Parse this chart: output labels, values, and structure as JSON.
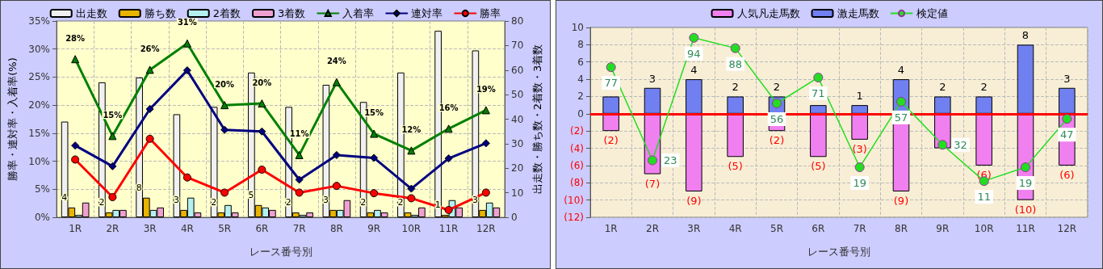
{
  "chart_data": [
    {
      "type": "bar",
      "xlabel": "レース番号別",
      "ylabel": "勝率・連対率・入着率(%)",
      "y2label": "出走数・勝ち数・2着数・3着数",
      "categories": [
        "1R",
        "2R",
        "3R",
        "4R",
        "5R",
        "6R",
        "7R",
        "8R",
        "9R",
        "10R",
        "11R",
        "12R"
      ],
      "series": [
        {
          "name": "出走数",
          "color": "#f0f0f0",
          "axis": "y2",
          "values": [
            39,
            55,
            57,
            42,
            45,
            59,
            45,
            54,
            47,
            59,
            76,
            68
          ]
        },
        {
          "name": "勝ち数",
          "color": "#e8b400",
          "axis": "y2",
          "values": [
            4,
            2,
            8,
            3,
            2,
            5,
            2,
            3,
            2,
            2,
            1,
            3
          ],
          "value_labels": [
            "4",
            "2",
            "8",
            "3",
            "2",
            "5",
            "2",
            "3",
            "2",
            "2",
            "1",
            "3"
          ]
        },
        {
          "name": "2着数",
          "color": "#b4f0f0",
          "axis": "y2",
          "values": [
            1,
            3,
            3,
            8,
            5,
            4,
            1,
            3,
            3,
            1,
            7,
            6
          ]
        },
        {
          "name": "3着数",
          "color": "#f0a0d0",
          "axis": "y2",
          "values": [
            6,
            3,
            4,
            2,
            2,
            3,
            2,
            7,
            2,
            4,
            4,
            4
          ]
        },
        {
          "name": "入着率",
          "type": "line",
          "color": "#008000",
          "marker": "triangle",
          "values": [
            28.2,
            14.5,
            26.3,
            31.0,
            20.0,
            20.3,
            11.1,
            24.1,
            14.9,
            11.9,
            15.8,
            19.1
          ],
          "value_labels": [
            "28%",
            "15%",
            "26%",
            "31%",
            "20%",
            "20%",
            "11%",
            "24%",
            "15%",
            "12%",
            "16%",
            "19%"
          ]
        },
        {
          "name": "連対率",
          "type": "line",
          "color": "#000080",
          "marker": "diamond",
          "values": [
            12.8,
            9.1,
            19.3,
            26.2,
            15.6,
            15.3,
            6.7,
            11.1,
            10.6,
            5.1,
            10.5,
            13.2
          ]
        },
        {
          "name": "勝率",
          "type": "line",
          "color": "#ff0000",
          "marker": "circle",
          "values": [
            10.3,
            3.6,
            14.0,
            7.1,
            4.4,
            8.5,
            4.4,
            5.6,
            4.3,
            3.4,
            1.3,
            4.4
          ]
        }
      ],
      "ylim": [
        0,
        35
      ],
      "yticks": [
        {
          "value": 0,
          "label": "0%"
        },
        {
          "value": 5,
          "label": "5%"
        },
        {
          "value": 10,
          "label": "10%"
        },
        {
          "value": 15,
          "label": "15%"
        },
        {
          "value": 20,
          "label": "20%"
        },
        {
          "value": 25,
          "label": "25%"
        },
        {
          "value": 30,
          "label": "30%"
        },
        {
          "value": 35,
          "label": "35%"
        }
      ],
      "y2lim": [
        0,
        80
      ],
      "y2ticks": [
        0,
        10,
        20,
        30,
        40,
        50,
        60,
        70,
        80
      ],
      "grid": true,
      "legend": "top"
    },
    {
      "type": "bar",
      "xlabel": "レース番号別",
      "stacked": true,
      "categories": [
        "1R",
        "2R",
        "3R",
        "4R",
        "5R",
        "6R",
        "7R",
        "8R",
        "9R",
        "10R",
        "11R",
        "12R"
      ],
      "series": [
        {
          "name": "人気凡走馬数",
          "color": "#f080f0",
          "values": [
            -2,
            -7,
            -9,
            -5,
            -2,
            -5,
            -3,
            -9,
            -4,
            -6,
            -10,
            -6
          ],
          "value_labels": [
            "(2)",
            "(7)",
            "(9)",
            "(5)",
            "(2)",
            "(5)",
            "(3)",
            "(9)",
            null,
            "(6)",
            "(10)",
            "(6)"
          ]
        },
        {
          "name": "激走馬数",
          "color": "#7080f0",
          "values": [
            2,
            3,
            4,
            2,
            2,
            1,
            1,
            4,
            2,
            2,
            8,
            3
          ],
          "value_labels": [
            null,
            "3",
            "4",
            "2",
            "2",
            null,
            "1",
            "4",
            "2",
            "2",
            "8",
            "3"
          ]
        },
        {
          "name": "検定値",
          "type": "line",
          "color": "#22dd22",
          "marker": "circle",
          "axis": "y2",
          "values": [
            77,
            23,
            94,
            88,
            56,
            71,
            19,
            57,
            32,
            11,
            19,
            47
          ],
          "value_labels": [
            "77",
            "23",
            "94",
            "88",
            "56",
            "71",
            "19",
            "57",
            "32",
            "11",
            "19",
            "47"
          ]
        }
      ],
      "ylim": [
        -12,
        10
      ],
      "yticks": [
        {
          "value": -12,
          "label": "(12)"
        },
        {
          "value": -10,
          "label": "(10)"
        },
        {
          "value": -8,
          "label": "(8)"
        },
        {
          "value": -6,
          "label": "(6)"
        },
        {
          "value": -4,
          "label": "(4)"
        },
        {
          "value": -2,
          "label": "(2)"
        },
        0,
        2,
        4,
        6,
        8,
        10
      ],
      "y2lim": [
        -10,
        100
      ],
      "ref_lines": [
        {
          "axis": "y",
          "value": 0,
          "color": "#ff0000"
        }
      ],
      "grid": true,
      "legend": "top"
    }
  ]
}
